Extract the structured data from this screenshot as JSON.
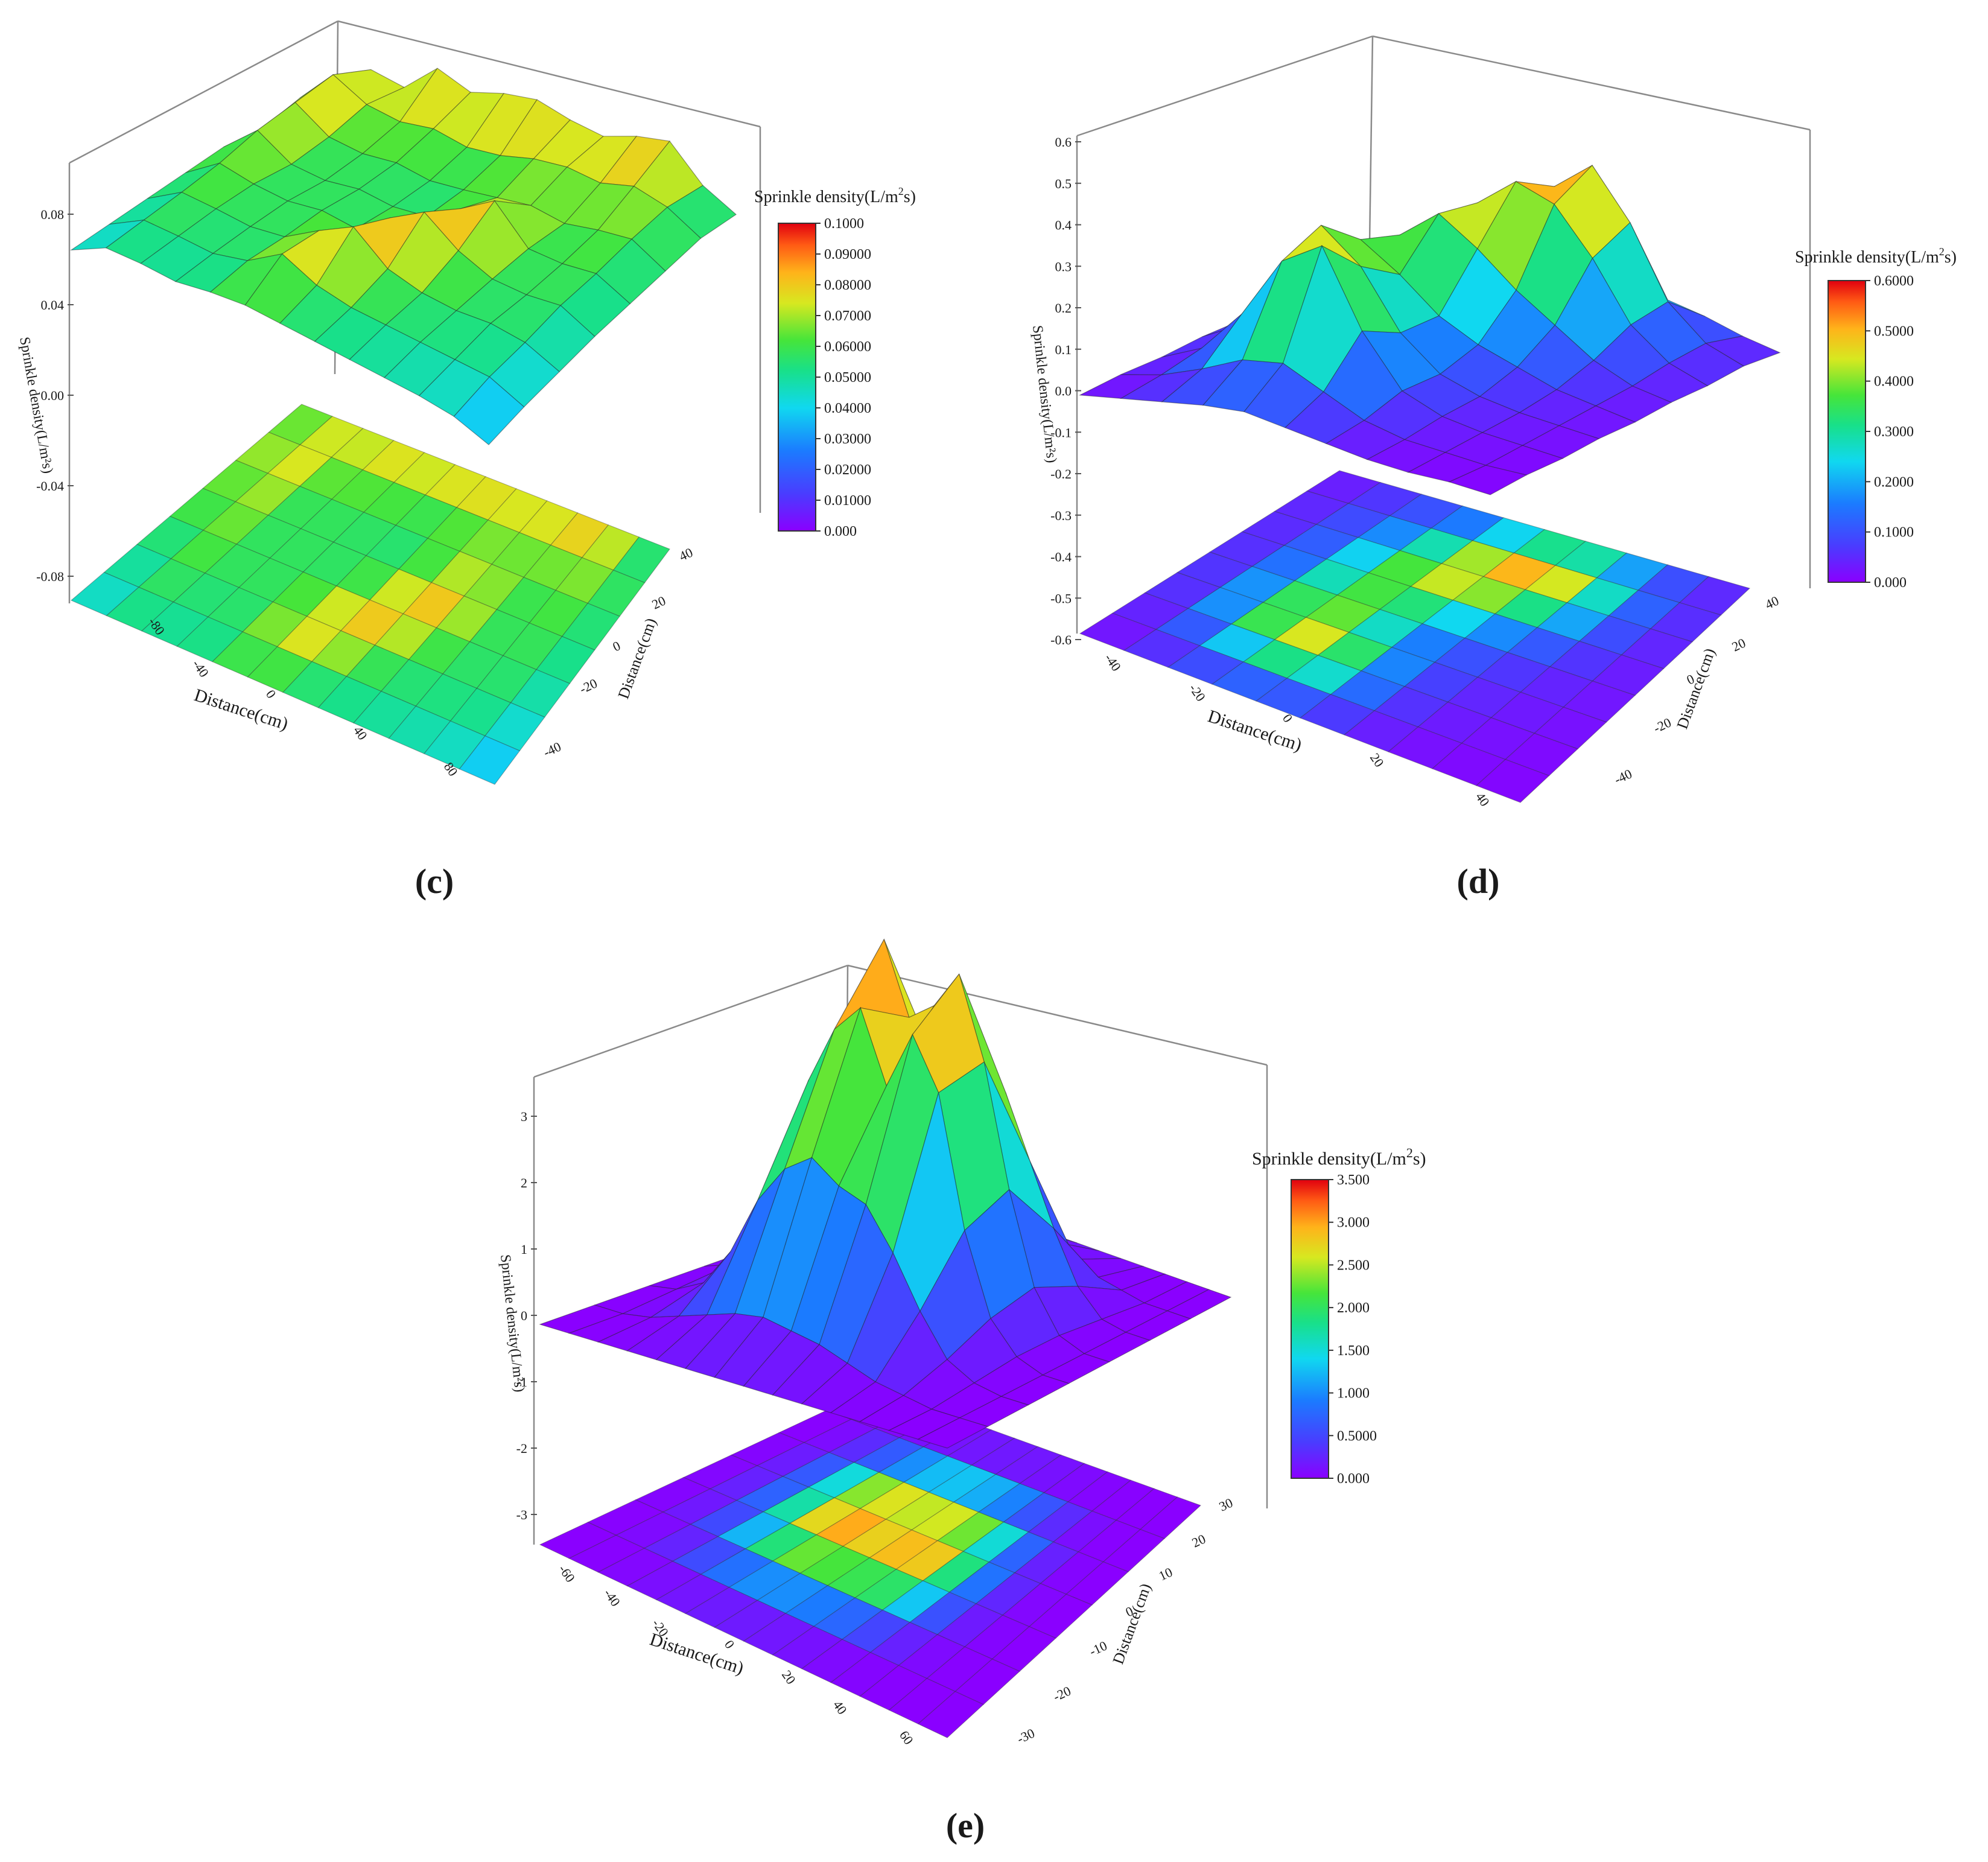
{
  "panels": [
    {
      "caption": "(c)",
      "cb_title": "Sprinkle density(L/m",
      "cb_title_sup": "2",
      "cb_title_tail": "s)",
      "cb_ticks": [
        "0.1000",
        "0.09000",
        "0.08000",
        "0.07000",
        "0.06000",
        "0.05000",
        "0.04000",
        "0.03000",
        "0.02000",
        "0.01000",
        "0.000"
      ],
      "z_label": "Sprinkle density(L/m²s)",
      "z_ticks": [
        "0.08",
        "0.04",
        "0.00",
        "-0.04",
        "-0.08"
      ],
      "x_label": "Distance(cm)",
      "x_ticks": [
        "-80",
        "-40",
        "0",
        "40",
        "80"
      ],
      "y_label": "Distance(cm)",
      "y_ticks": [
        "40",
        "20",
        "0",
        "-20",
        "-40"
      ]
    },
    {
      "caption": "(d)",
      "cb_title": "Sprinkle density(L/m",
      "cb_title_sup": "2",
      "cb_title_tail": "s)",
      "cb_ticks": [
        "0.6000",
        "0.5000",
        "0.4000",
        "0.3000",
        "0.2000",
        "0.1000",
        "0.000"
      ],
      "z_label": "Sprinkle density(L/m²s)",
      "z_ticks": [
        "0.6",
        "0.5",
        "0.4",
        "0.3",
        "0.2",
        "0.1",
        "0.0",
        "-0.1",
        "-0.2",
        "-0.3",
        "-0.4",
        "-0.5",
        "-0.6"
      ],
      "x_label": "Distance(cm)",
      "x_ticks": [
        "-40",
        "-20",
        "0",
        "20",
        "40"
      ],
      "y_label": "Distance(cm)",
      "y_ticks": [
        "40",
        "20",
        "0",
        "-20",
        "-40"
      ]
    },
    {
      "caption": "(e)",
      "cb_title": "Sprinkle density(L/m",
      "cb_title_sup": "2",
      "cb_title_tail": "s)",
      "cb_ticks": [
        "3.500",
        "3.000",
        "2.500",
        "2.000",
        "1.500",
        "1.000",
        "0.5000",
        "0.000"
      ],
      "z_label": "Sprinkle density(L/m²s)",
      "z_ticks": [
        "3",
        "2",
        "1",
        "0",
        "-1",
        "-2",
        "-3"
      ],
      "x_label": "Distance(cm)",
      "x_ticks": [
        "-60",
        "-40",
        "-20",
        "0",
        "20",
        "40",
        "60"
      ],
      "y_label": "Distance(cm)",
      "y_ticks": [
        "30",
        "20",
        "10",
        "0",
        "-10",
        "-20",
        "-30"
      ]
    }
  ],
  "chart_data": [
    {
      "type": "surface",
      "colorbar_range": [
        0,
        0.1
      ],
      "zlim": [
        -0.1,
        0.1
      ],
      "x_range": [
        -90,
        90
      ],
      "y_range": [
        -50,
        50
      ],
      "grid_rows": [
        [
          0.045,
          0.072,
          0.066,
          0.089,
          0.078,
          0.085,
          0.088,
          0.08,
          0.075,
          0.083,
          0.087,
          0.06,
          0.045
        ],
        [
          0.058,
          0.085,
          0.07,
          0.065,
          0.068,
          0.062,
          0.064,
          0.07,
          0.072,
          0.068,
          0.074,
          0.066,
          0.05
        ],
        [
          0.05,
          0.08,
          0.062,
          0.058,
          0.06,
          0.055,
          0.057,
          0.06,
          0.063,
          0.058,
          0.062,
          0.064,
          0.048
        ],
        [
          0.052,
          0.075,
          0.058,
          0.055,
          0.058,
          0.054,
          0.056,
          0.072,
          0.088,
          0.06,
          0.058,
          0.06,
          0.046
        ],
        [
          0.048,
          0.066,
          0.06,
          0.057,
          0.06,
          0.056,
          0.075,
          0.09,
          0.07,
          0.058,
          0.056,
          0.058,
          0.044
        ],
        [
          0.044,
          0.06,
          0.058,
          0.055,
          0.058,
          0.074,
          0.088,
          0.066,
          0.058,
          0.055,
          0.056,
          0.052,
          0.04
        ],
        [
          0.04,
          0.055,
          0.054,
          0.052,
          0.058,
          0.075,
          0.062,
          0.056,
          0.054,
          0.052,
          0.05,
          0.048,
          0.036
        ],
        [
          0.036,
          0.05,
          0.05,
          0.048,
          0.052,
          0.054,
          0.052,
          0.05,
          0.048,
          0.046,
          0.044,
          0.04,
          0.03
        ]
      ]
    },
    {
      "type": "surface",
      "colorbar_range": [
        0,
        0.6
      ],
      "zlim": [
        -0.6,
        0.6
      ],
      "x_range": [
        -50,
        50
      ],
      "y_range": [
        -50,
        50
      ],
      "grid_rows": [
        [
          0.02,
          0.04,
          0.06,
          0.08,
          0.1,
          0.12,
          0.12,
          0.1,
          0.08,
          0.05,
          0.03
        ],
        [
          0.03,
          0.06,
          0.1,
          0.16,
          0.28,
          0.45,
          0.55,
          0.4,
          0.18,
          0.08,
          0.04
        ],
        [
          0.03,
          0.07,
          0.14,
          0.28,
          0.42,
          0.52,
          0.48,
          0.34,
          0.16,
          0.07,
          0.03
        ],
        [
          0.03,
          0.08,
          0.18,
          0.34,
          0.44,
          0.36,
          0.26,
          0.18,
          0.1,
          0.05,
          0.03
        ],
        [
          0.03,
          0.09,
          0.22,
          0.38,
          0.3,
          0.2,
          0.14,
          0.1,
          0.06,
          0.04,
          0.02
        ],
        [
          0.03,
          0.1,
          0.3,
          0.48,
          0.38,
          0.2,
          0.1,
          0.06,
          0.04,
          0.03,
          0.02
        ],
        [
          0.02,
          0.08,
          0.22,
          0.42,
          0.5,
          0.26,
          0.1,
          0.05,
          0.03,
          0.02,
          0.01
        ],
        [
          0.02,
          0.05,
          0.1,
          0.16,
          0.18,
          0.12,
          0.06,
          0.03,
          0.02,
          0.01,
          0.01
        ],
        [
          0.01,
          0.03,
          0.05,
          0.07,
          0.08,
          0.06,
          0.04,
          0.02,
          0.01,
          0.01,
          0.0
        ]
      ]
    },
    {
      "type": "surface",
      "colorbar_range": [
        0,
        3.6
      ],
      "zlim": [
        -3.5,
        3.5
      ],
      "x_range": [
        -70,
        70
      ],
      "y_range": [
        -30,
        30
      ],
      "grid_rows": [
        [
          0.0,
          0.0,
          0.0,
          0.0,
          0.0,
          0.0,
          0.0,
          0.0,
          0.0,
          0.0,
          0.0,
          0.0,
          0.0,
          0.0,
          0.0
        ],
        [
          0.0,
          0.0,
          0.05,
          0.15,
          0.25,
          0.3,
          0.35,
          0.35,
          0.3,
          0.2,
          0.1,
          0.05,
          0.0,
          0.0,
          0.0
        ],
        [
          0.0,
          0.05,
          0.25,
          0.8,
          1.5,
          2.1,
          2.4,
          2.2,
          2.0,
          1.4,
          0.8,
          0.3,
          0.05,
          0.0,
          0.0
        ],
        [
          0.0,
          0.1,
          0.4,
          1.2,
          2.6,
          3.5,
          2.8,
          3.0,
          3.4,
          2.6,
          1.4,
          0.5,
          0.1,
          0.0,
          0.0
        ],
        [
          0.0,
          0.1,
          0.35,
          1.0,
          2.2,
          2.8,
          3.1,
          2.4,
          3.0,
          2.5,
          1.2,
          0.4,
          0.1,
          0.0,
          0.0
        ],
        [
          0.0,
          0.05,
          0.2,
          0.6,
          1.2,
          1.6,
          1.8,
          1.6,
          1.5,
          1.1,
          0.6,
          0.2,
          0.05,
          0.0,
          0.0
        ],
        [
          0.0,
          0.0,
          0.05,
          0.15,
          0.25,
          0.35,
          0.4,
          0.35,
          0.3,
          0.2,
          0.1,
          0.05,
          0.0,
          0.0,
          0.0
        ],
        [
          0.0,
          0.0,
          0.0,
          0.0,
          0.0,
          0.0,
          0.0,
          0.0,
          0.0,
          0.0,
          0.0,
          0.0,
          0.0,
          0.0,
          0.0
        ]
      ]
    }
  ]
}
